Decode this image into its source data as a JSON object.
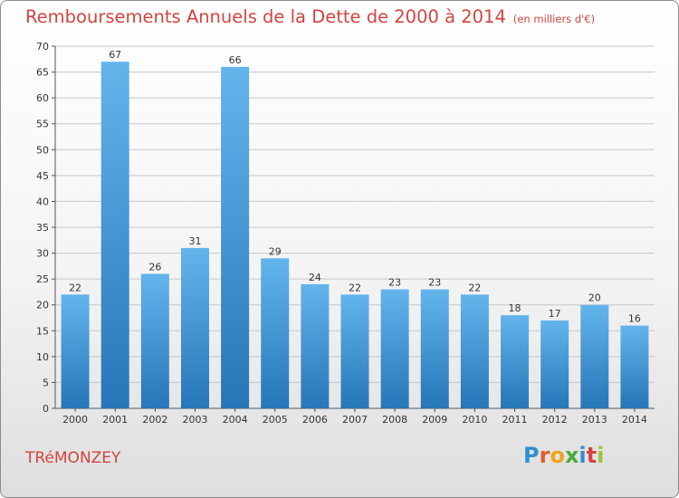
{
  "header": {
    "title": "Remboursements Annuels de la Dette de 2000 à 2014",
    "unit": "(en milliers d'€)"
  },
  "commune": "TRéMONZEY",
  "logo": {
    "text": "Proxiti",
    "letters": [
      {
        "char": "P",
        "color": "#2f8fd2"
      },
      {
        "char": "r",
        "color": "#e55a2a"
      },
      {
        "char": "o",
        "color": "#f0a21e"
      },
      {
        "char": "x",
        "color": "#4aaa39"
      },
      {
        "char": "i",
        "color": "#2f8fd2"
      },
      {
        "char": "t",
        "color": "#d2443f"
      },
      {
        "char": "i",
        "color": "#9bc53d"
      }
    ]
  },
  "colors": {
    "bar_light": "#64b4ec",
    "bar_dark": "#2676b8",
    "title": "#d2443f",
    "grid": "#c8c8c8"
  },
  "chart_data": {
    "type": "bar",
    "categories": [
      "2000",
      "2001",
      "2002",
      "2003",
      "2004",
      "2005",
      "2006",
      "2007",
      "2008",
      "2009",
      "2010",
      "2011",
      "2012",
      "2013",
      "2014"
    ],
    "values": [
      22,
      67,
      26,
      31,
      66,
      29,
      24,
      22,
      23,
      23,
      22,
      18,
      17,
      20,
      16
    ],
    "ylim": [
      0,
      70
    ],
    "yticks": [
      0,
      5,
      10,
      15,
      20,
      25,
      30,
      35,
      40,
      45,
      50,
      55,
      60,
      65,
      70
    ],
    "grid": true,
    "legend": "none"
  }
}
